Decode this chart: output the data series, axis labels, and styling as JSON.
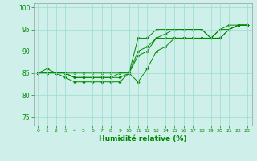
{
  "xlabel": "Humidité relative (%)",
  "bg_color": "#cff0ea",
  "grid_color": "#99ddcc",
  "line_color": "#008800",
  "marker_color": "#008800",
  "xlim": [
    -0.5,
    23.5
  ],
  "ylim": [
    73,
    101
  ],
  "yticks": [
    75,
    80,
    85,
    90,
    95,
    100
  ],
  "xticks": [
    0,
    1,
    2,
    3,
    4,
    5,
    6,
    7,
    8,
    9,
    10,
    11,
    12,
    13,
    14,
    15,
    16,
    17,
    18,
    19,
    20,
    21,
    22,
    23
  ],
  "series": [
    [
      85,
      86,
      85,
      85,
      84,
      84,
      84,
      84,
      84,
      85,
      85,
      93,
      93,
      95,
      95,
      95,
      95,
      95,
      95,
      93,
      95,
      96,
      96,
      96
    ],
    [
      85,
      85,
      85,
      84,
      83,
      83,
      83,
      83,
      83,
      83,
      85,
      89,
      90,
      93,
      93,
      93,
      93,
      93,
      93,
      93,
      93,
      95,
      96,
      96
    ],
    [
      85,
      85,
      85,
      85,
      84,
      84,
      84,
      84,
      84,
      84,
      85,
      90,
      91,
      93,
      94,
      95,
      95,
      95,
      95,
      93,
      95,
      95,
      96,
      96
    ],
    [
      85,
      85,
      85,
      85,
      85,
      85,
      85,
      85,
      85,
      85,
      85,
      83,
      86,
      90,
      91,
      93,
      93,
      93,
      93,
      93,
      93,
      95,
      96,
      96
    ]
  ]
}
